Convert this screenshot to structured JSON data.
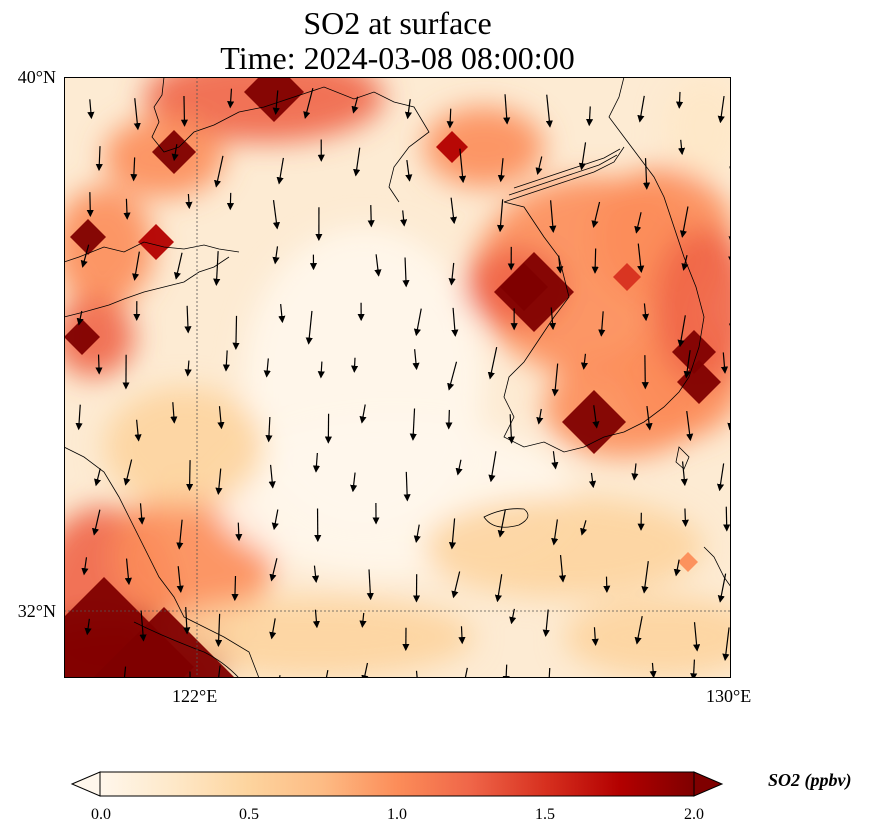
{
  "title": {
    "line1": "SO2 at surface",
    "line2": "Time: 2024-03-08 08:00:00"
  },
  "map": {
    "lat_labels": [
      "40°N",
      "32°N"
    ],
    "lon_labels": [
      "122°E",
      "130°E"
    ],
    "extent": {
      "lon": [
        120,
        130
      ],
      "lat": [
        31,
        40
      ]
    },
    "gridlines": {
      "lon": [
        122
      ],
      "lat": [
        32
      ]
    }
  },
  "colorbar": {
    "label": "SO2 (ppbv)",
    "ticks": [
      "0.0",
      "0.5",
      "1.0",
      "1.5",
      "2.0"
    ],
    "range": [
      0.0,
      2.0
    ],
    "extend": "both",
    "colormap": "OrRd",
    "colors": [
      "#fff7ec",
      "#fee8c8",
      "#fdd49e",
      "#fdbb84",
      "#fc8d59",
      "#ef6548",
      "#d7301f",
      "#b30000",
      "#7f0000"
    ]
  }
}
